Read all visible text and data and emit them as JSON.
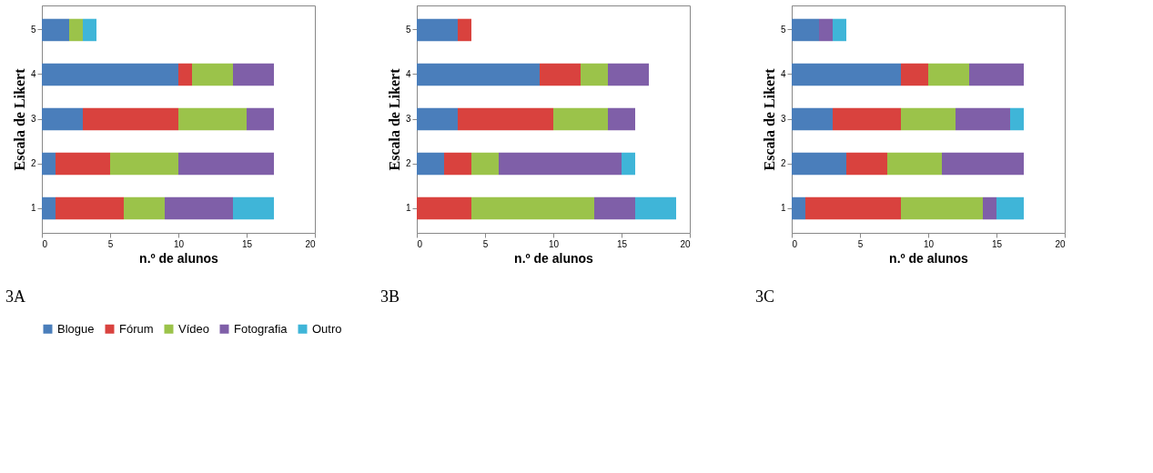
{
  "chart_data": [
    {
      "type": "bar",
      "orientation": "horizontal",
      "stacked": true,
      "categories": [
        "5",
        "4",
        "3",
        "2",
        "1"
      ],
      "xlabel": "n.º de alunos",
      "ylabel": "Escala de Likert",
      "xlim": [
        0,
        20
      ],
      "xticks": [
        0,
        5,
        10,
        15,
        20
      ],
      "grid": false,
      "legend": "bottom",
      "annotations": [
        "3A"
      ],
      "series": [
        {
          "name": "Blogue",
          "color": "#4a7ebb",
          "values": [
            2,
            10,
            3,
            1,
            1
          ]
        },
        {
          "name": "Fórum",
          "color": "#d9423e",
          "values": [
            0,
            1,
            7,
            4,
            5
          ]
        },
        {
          "name": "Vídeo",
          "color": "#9bc34a",
          "values": [
            1,
            3,
            5,
            5,
            3
          ]
        },
        {
          "name": "Fotografia",
          "color": "#7f5fa8",
          "values": [
            0,
            3,
            2,
            7,
            5
          ]
        },
        {
          "name": "Outro",
          "color": "#3fb5d8",
          "values": [
            1,
            0,
            0,
            0,
            3
          ]
        }
      ]
    },
    {
      "type": "bar",
      "orientation": "horizontal",
      "stacked": true,
      "categories": [
        "5",
        "4",
        "3",
        "2",
        "1"
      ],
      "xlabel": "n.º de alunos",
      "ylabel": "Escala de Likert",
      "xlim": [
        0,
        20
      ],
      "xticks": [
        0,
        5,
        10,
        15,
        20
      ],
      "grid": false,
      "legend": "bottom",
      "annotations": [
        "3B"
      ],
      "series": [
        {
          "name": "Blogue",
          "color": "#4a7ebb",
          "values": [
            3,
            9,
            3,
            2,
            0
          ]
        },
        {
          "name": "Fórum",
          "color": "#d9423e",
          "values": [
            1,
            3,
            7,
            2,
            4
          ]
        },
        {
          "name": "Vídeo",
          "color": "#9bc34a",
          "values": [
            0,
            2,
            4,
            2,
            9
          ]
        },
        {
          "name": "Fotografia",
          "color": "#7f5fa8",
          "values": [
            0,
            3,
            2,
            9,
            3
          ]
        },
        {
          "name": "Outro",
          "color": "#3fb5d8",
          "values": [
            0,
            0,
            0,
            1,
            3
          ]
        }
      ]
    },
    {
      "type": "bar",
      "orientation": "horizontal",
      "stacked": true,
      "categories": [
        "5",
        "4",
        "3",
        "2",
        "1"
      ],
      "xlabel": "n.º de alunos",
      "ylabel": "Escala de Likert",
      "xlim": [
        0,
        20
      ],
      "xticks": [
        0,
        5,
        10,
        15,
        20
      ],
      "grid": false,
      "legend": "bottom",
      "annotations": [
        "3C"
      ],
      "series": [
        {
          "name": "Blogue",
          "color": "#4a7ebb",
          "values": [
            2,
            8,
            3,
            4,
            1
          ]
        },
        {
          "name": "Fórum",
          "color": "#d9423e",
          "values": [
            0,
            2,
            5,
            3,
            7
          ]
        },
        {
          "name": "Vídeo",
          "color": "#9bc34a",
          "values": [
            0,
            3,
            4,
            4,
            6
          ]
        },
        {
          "name": "Fotografia",
          "color": "#7f5fa8",
          "values": [
            1,
            4,
            4,
            6,
            1
          ]
        },
        {
          "name": "Outro",
          "color": "#3fb5d8",
          "values": [
            1,
            0,
            1,
            0,
            2
          ]
        }
      ]
    }
  ]
}
